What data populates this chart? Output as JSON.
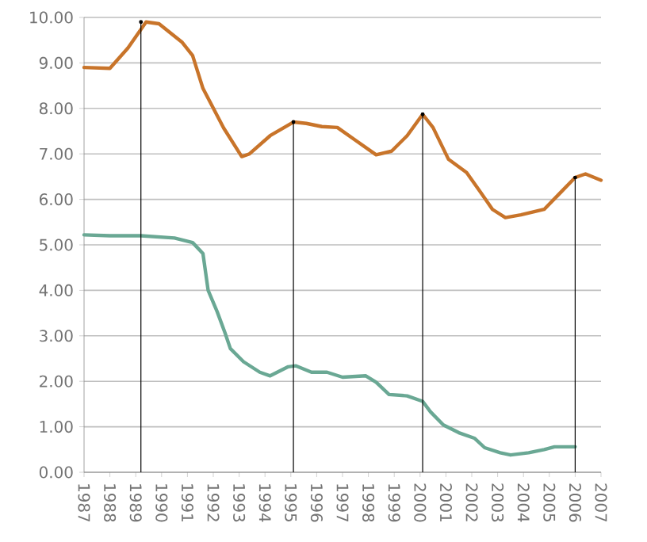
{
  "chart_data": {
    "type": "line",
    "xlim": [
      1987,
      2007
    ],
    "xticks": [
      1987,
      1988,
      1989,
      1990,
      1991,
      1992,
      1993,
      1994,
      1995,
      1996,
      1997,
      1998,
      1999,
      2000,
      2001,
      2002,
      2003,
      2004,
      2005,
      2006,
      2007
    ],
    "ylim": [
      0,
      10
    ],
    "yticks": [
      {
        "value": 0,
        "label": "0.00"
      },
      {
        "value": 1,
        "label": "1.00"
      },
      {
        "value": 2,
        "label": "2.00"
      },
      {
        "value": 3,
        "label": "3.00"
      },
      {
        "value": 4,
        "label": "4.00"
      },
      {
        "value": 5,
        "label": "5.00"
      },
      {
        "value": 6,
        "label": "6.00"
      },
      {
        "value": 7,
        "label": "7.00"
      },
      {
        "value": 8,
        "label": "8.00"
      },
      {
        "value": 9,
        "label": "9.00"
      },
      {
        "value": 10,
        "label": "10.00"
      }
    ],
    "grid": "y",
    "marker": "none",
    "series": [
      {
        "color": "#c8742a",
        "x": [
          1987.0,
          1988.0,
          1988.7,
          1989.4,
          1989.9,
          1990.8,
          1991.2,
          1991.6,
          1992.4,
          1993.1,
          1993.4,
          1994.2,
          1995.1,
          1995.6,
          1996.2,
          1996.8,
          1997.5,
          1998.3,
          1998.9,
          1999.5,
          2000.1,
          2000.5,
          2001.1,
          2001.8,
          2002.3,
          2002.8,
          2003.3,
          2003.9,
          2004.8,
          2005.4,
          2006.0,
          2006.4,
          2007.0
        ],
        "values": [
          8.9,
          8.88,
          9.33,
          9.9,
          9.86,
          9.45,
          9.16,
          8.44,
          7.57,
          6.94,
          7.0,
          7.4,
          7.7,
          7.67,
          7.6,
          7.58,
          7.3,
          6.98,
          7.06,
          7.4,
          7.87,
          7.58,
          6.88,
          6.59,
          6.19,
          5.78,
          5.6,
          5.66,
          5.78,
          6.13,
          6.48,
          6.56,
          6.42
        ]
      },
      {
        "color": "#6aa894",
        "x": [
          1987.0,
          1988.0,
          1989.2,
          1990.5,
          1991.2,
          1991.6,
          1991.8,
          1992.15,
          1992.45,
          1992.66,
          1993.17,
          1993.8,
          1994.2,
          1994.9,
          1995.2,
          1995.8,
          1996.4,
          1997.0,
          1997.9,
          1998.3,
          1998.8,
          1999.5,
          2000.1,
          2000.4,
          2000.9,
          2001.5,
          2002.1,
          2002.5,
          2003.1,
          2003.5,
          2004.2,
          2004.8,
          2005.2,
          2006.0
        ],
        "values": [
          5.22,
          5.2,
          5.2,
          5.15,
          5.05,
          4.81,
          4.0,
          3.53,
          3.07,
          2.72,
          2.43,
          2.2,
          2.12,
          2.32,
          2.34,
          2.2,
          2.2,
          2.09,
          2.12,
          1.98,
          1.71,
          1.68,
          1.56,
          1.33,
          1.04,
          0.87,
          0.75,
          0.54,
          0.43,
          0.38,
          0.43,
          0.5,
          0.56,
          0.56
        ]
      },
      {
        "type": "lollipop",
        "color": "#000000",
        "x": [
          1989.2,
          1995.1,
          2000.1,
          2006.0
        ],
        "values": [
          9.9,
          7.7,
          7.87,
          6.48
        ]
      }
    ]
  }
}
